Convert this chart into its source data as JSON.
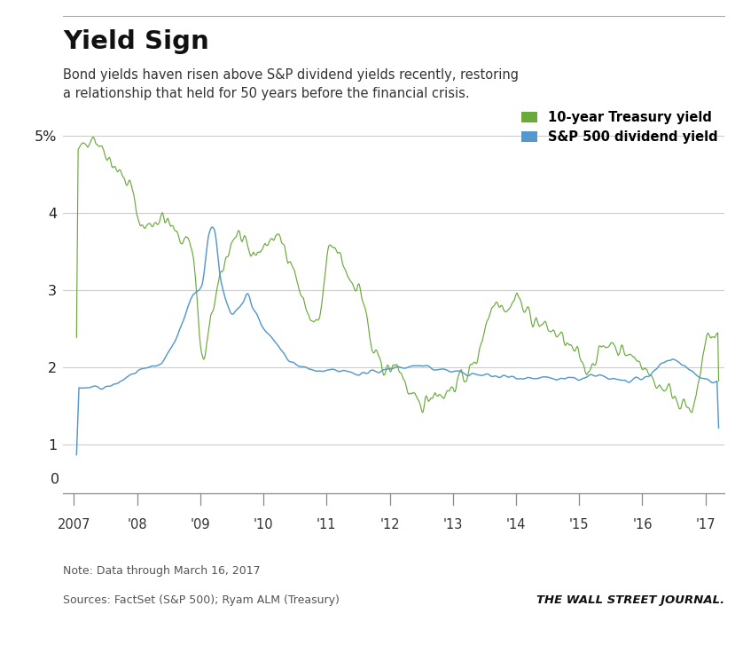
{
  "title": "Yield Sign",
  "subtitle": "Bond yields haven risen above S&P dividend yields recently, restoring\na relationship that held for 50 years before the financial crisis.",
  "note": "Note: Data through March 16, 2017",
  "source": "Sources: FactSet (S&P 500); Ryam ALM (Treasury)",
  "wsj": "THE WALL STREET JOURNAL.",
  "legend_treasury": "10-year Treasury yield",
  "legend_sp": "S&P 500 dividend yield",
  "treasury_color": "#6aaa3a",
  "sp_color": "#5599cc",
  "bg_color": "#ffffff",
  "ylim": [
    0.8,
    5.4
  ],
  "xlim_start": 2006.83,
  "xlim_end": 2017.3,
  "xtick_labels": [
    "2007",
    "'08",
    "'09",
    "'10",
    "'11",
    "'12",
    "'13",
    "'14",
    "'15",
    "'16",
    "'17"
  ],
  "xtick_vals": [
    2007,
    2008,
    2009,
    2010,
    2011,
    2012,
    2013,
    2014,
    2015,
    2016,
    2017
  ]
}
